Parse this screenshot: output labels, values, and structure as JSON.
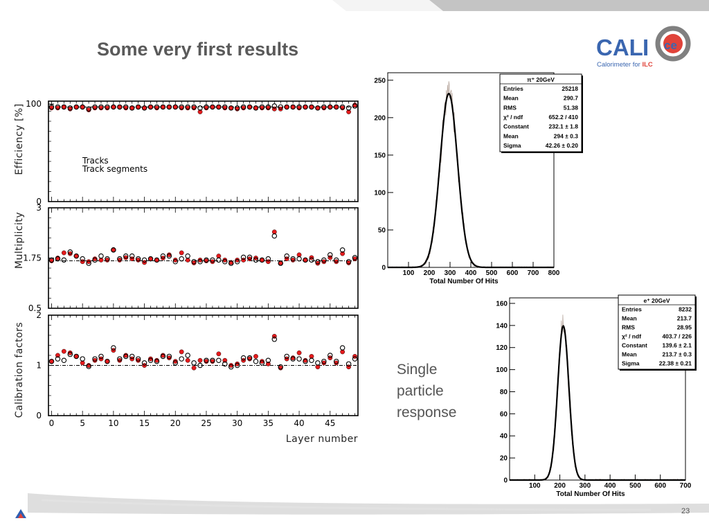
{
  "slide": {
    "title": "Some very first results",
    "page_number": "23",
    "single_particle_text": [
      "Single",
      "particle",
      "response"
    ]
  },
  "logo": {
    "text_cal": "CAL",
    "text_i": "I",
    "text_ce": "ce",
    "subtitle_pre": "Calorimeter for ",
    "subtitle_ilc": "ILC"
  },
  "colors": {
    "accent_red": "#e41a1c",
    "logo_blue": "#3a66b0",
    "logo_red": "#e0433a",
    "header_grey": "#c8c8c8"
  },
  "chart_data": [
    {
      "type": "scatter",
      "ylabel": "Efficiency [%]",
      "xlabel": "Layer number",
      "xlim": [
        -0.5,
        49.5
      ],
      "ylim": [
        0,
        103
      ],
      "yticks": [
        "0",
        "100"
      ],
      "reference_line": 97,
      "legend": [
        "Tracks",
        "Track segments"
      ],
      "series": [
        {
          "name": "Tracks",
          "marker": "open-circle",
          "x": [
            0,
            1,
            2,
            3,
            4,
            5,
            6,
            7,
            8,
            9,
            10,
            11,
            12,
            13,
            14,
            15,
            16,
            17,
            18,
            19,
            20,
            21,
            22,
            23,
            24,
            25,
            26,
            27,
            28,
            29,
            30,
            31,
            32,
            33,
            34,
            35,
            36,
            37,
            38,
            39,
            40,
            41,
            42,
            43,
            44,
            45,
            46,
            47,
            48,
            49
          ],
          "values": [
            97,
            97,
            97,
            96,
            97,
            97,
            95,
            97,
            97,
            97,
            97,
            97,
            97,
            96,
            97,
            96,
            97,
            97,
            97,
            97,
            97,
            97,
            97,
            97,
            96,
            97,
            97,
            97,
            97,
            96,
            96,
            97,
            97,
            96,
            97,
            97,
            98,
            97,
            97,
            97,
            97,
            97,
            97,
            96,
            97,
            97,
            97,
            97,
            96,
            98
          ]
        },
        {
          "name": "Track segments",
          "marker": "filled-circle",
          "x": [
            0,
            1,
            2,
            3,
            4,
            5,
            6,
            7,
            8,
            9,
            10,
            11,
            12,
            13,
            14,
            15,
            16,
            17,
            18,
            19,
            20,
            21,
            22,
            23,
            24,
            25,
            26,
            27,
            28,
            29,
            30,
            31,
            32,
            33,
            34,
            35,
            36,
            37,
            38,
            39,
            40,
            41,
            42,
            43,
            44,
            45,
            46,
            47,
            48,
            49
          ],
          "values": [
            96,
            96,
            97,
            95,
            97,
            97,
            94,
            96,
            96,
            96,
            97,
            97,
            96,
            96,
            97,
            96,
            97,
            96,
            97,
            97,
            97,
            96,
            96,
            96,
            92,
            96,
            97,
            97,
            96,
            96,
            95,
            96,
            97,
            96,
            96,
            96,
            95,
            95,
            97,
            97,
            96,
            97,
            97,
            96,
            96,
            97,
            97,
            96,
            92,
            99
          ]
        }
      ]
    },
    {
      "type": "scatter",
      "ylabel": "Multiplicity",
      "xlabel": "Layer number",
      "xlim": [
        -0.5,
        49.5
      ],
      "ylim": [
        0.5,
        3
      ],
      "yticks": [
        "0.5",
        "1.75",
        "3"
      ],
      "reference_line": 1.68,
      "series": [
        {
          "name": "Tracks",
          "marker": "open-circle",
          "x": [
            0,
            1,
            2,
            3,
            4,
            5,
            6,
            7,
            8,
            9,
            10,
            11,
            12,
            13,
            14,
            15,
            16,
            17,
            18,
            19,
            20,
            21,
            22,
            23,
            24,
            25,
            26,
            27,
            28,
            29,
            30,
            31,
            32,
            33,
            34,
            35,
            36,
            37,
            38,
            39,
            40,
            41,
            42,
            43,
            44,
            45,
            46,
            47,
            48,
            49
          ],
          "values": [
            1.7,
            1.73,
            1.7,
            1.9,
            1.8,
            1.73,
            1.62,
            1.7,
            1.8,
            1.73,
            1.95,
            1.73,
            1.8,
            1.8,
            1.73,
            1.7,
            1.73,
            1.7,
            1.8,
            1.8,
            1.66,
            1.73,
            1.8,
            1.66,
            1.66,
            1.7,
            1.7,
            1.7,
            1.66,
            1.62,
            1.66,
            1.77,
            1.77,
            1.7,
            1.7,
            1.73,
            2.3,
            1.62,
            1.8,
            1.73,
            1.73,
            1.7,
            1.7,
            1.66,
            1.7,
            1.83,
            1.7,
            1.95,
            1.66,
            1.76
          ]
        },
        {
          "name": "Track segments",
          "marker": "filled-circle",
          "x": [
            0,
            1,
            2,
            3,
            4,
            5,
            6,
            7,
            8,
            9,
            10,
            11,
            12,
            13,
            14,
            15,
            16,
            17,
            18,
            19,
            20,
            21,
            22,
            23,
            24,
            25,
            26,
            27,
            28,
            29,
            30,
            31,
            32,
            33,
            34,
            35,
            36,
            37,
            38,
            39,
            40,
            41,
            42,
            43,
            44,
            45,
            46,
            47,
            48,
            49
          ],
          "values": [
            1.68,
            1.75,
            1.88,
            1.86,
            1.8,
            1.66,
            1.66,
            1.73,
            1.7,
            1.7,
            1.96,
            1.7,
            1.76,
            1.73,
            1.7,
            1.64,
            1.73,
            1.7,
            1.75,
            1.83,
            1.7,
            1.88,
            1.7,
            1.63,
            1.7,
            1.68,
            1.66,
            1.8,
            1.7,
            1.64,
            1.7,
            1.7,
            1.73,
            1.75,
            1.7,
            1.66,
            2.4,
            1.63,
            1.73,
            1.7,
            1.83,
            1.7,
            1.76,
            1.62,
            1.66,
            1.76,
            1.66,
            1.86,
            1.63,
            1.73
          ]
        }
      ]
    },
    {
      "type": "scatter",
      "ylabel": "Calibration factors",
      "xlabel": "Layer number",
      "xlim": [
        -0.5,
        49.5
      ],
      "ylim": [
        0,
        2
      ],
      "yticks": [
        "0",
        "1",
        "2"
      ],
      "xticks": [
        "0",
        "5",
        "10",
        "15",
        "20",
        "25",
        "30",
        "35",
        "40",
        "45"
      ],
      "reference_line": 1.0,
      "series": [
        {
          "name": "Tracks",
          "marker": "open-circle",
          "x": [
            0,
            1,
            2,
            3,
            4,
            5,
            6,
            7,
            8,
            9,
            10,
            11,
            12,
            13,
            14,
            15,
            16,
            17,
            18,
            19,
            20,
            21,
            22,
            23,
            24,
            25,
            26,
            27,
            28,
            29,
            30,
            31,
            32,
            33,
            34,
            35,
            36,
            37,
            38,
            39,
            40,
            41,
            42,
            43,
            44,
            45,
            46,
            47,
            48,
            49
          ],
          "values": [
            1.08,
            1.13,
            1.1,
            1.22,
            1.18,
            1.13,
            0.98,
            1.13,
            1.18,
            1.08,
            1.35,
            1.13,
            1.18,
            1.18,
            1.13,
            1.05,
            1.1,
            1.08,
            1.18,
            1.18,
            1.05,
            1.13,
            1.2,
            1.05,
            1.0,
            1.1,
            1.1,
            1.1,
            1.03,
            0.97,
            1.0,
            1.15,
            1.15,
            1.08,
            1.05,
            1.1,
            1.52,
            0.97,
            1.18,
            1.13,
            1.13,
            1.08,
            1.1,
            1.05,
            1.08,
            1.2,
            1.08,
            1.35,
            1.03,
            1.13
          ]
        },
        {
          "name": "Track segments",
          "marker": "filled-circle",
          "x": [
            0,
            1,
            2,
            3,
            4,
            5,
            6,
            7,
            8,
            9,
            10,
            11,
            12,
            13,
            14,
            15,
            16,
            17,
            18,
            19,
            20,
            21,
            22,
            23,
            24,
            25,
            26,
            27,
            28,
            29,
            30,
            31,
            32,
            33,
            34,
            35,
            36,
            37,
            38,
            39,
            40,
            41,
            42,
            43,
            44,
            45,
            46,
            47,
            48,
            49
          ],
          "values": [
            1.08,
            1.2,
            1.28,
            1.25,
            1.18,
            1.05,
            1.0,
            1.1,
            1.13,
            1.08,
            1.3,
            1.1,
            1.2,
            1.13,
            1.1,
            1.0,
            1.13,
            1.1,
            1.2,
            1.15,
            1.08,
            1.27,
            1.1,
            0.95,
            1.1,
            1.08,
            1.08,
            1.23,
            1.1,
            1.0,
            1.03,
            1.1,
            1.13,
            1.18,
            1.08,
            1.03,
            1.58,
            0.95,
            1.13,
            1.15,
            1.25,
            1.1,
            1.18,
            0.97,
            1.05,
            1.15,
            1.05,
            1.27,
            0.97,
            1.18
          ]
        }
      ]
    },
    {
      "type": "line",
      "title": "π⁺ 20GeV",
      "xlabel": "Total Number Of Hits",
      "xlim": [
        0,
        800
      ],
      "ylim": [
        0,
        260
      ],
      "xticks": [
        "100",
        "200",
        "300",
        "400",
        "500",
        "600",
        "700",
        "800"
      ],
      "yticks": [
        "0",
        "50",
        "100",
        "150",
        "200",
        "250"
      ],
      "fit": {
        "shape": "gaussian",
        "constant": 232.1,
        "mean": 294,
        "sigma": 42.26
      },
      "stats": [
        [
          "Entries",
          "25218"
        ],
        [
          "Mean",
          "290.7"
        ],
        [
          "RMS",
          "51.38"
        ],
        [
          "χ² / ndf",
          "652.2 / 410"
        ],
        [
          "Constant",
          "232.1 ± 1.8"
        ],
        [
          "Mean",
          "294 ± 0.3"
        ],
        [
          "Sigma",
          "42.26 ± 0.20"
        ]
      ]
    },
    {
      "type": "line",
      "title": "e⁺ 20GeV",
      "xlabel": "Total Number Of Hits",
      "xlim": [
        0,
        700
      ],
      "ylim": [
        0,
        165
      ],
      "xticks": [
        "100",
        "200",
        "300",
        "400",
        "500",
        "600",
        "700"
      ],
      "yticks": [
        "0",
        "20",
        "40",
        "60",
        "80",
        "100",
        "120",
        "140",
        "160"
      ],
      "fit": {
        "shape": "gaussian",
        "constant": 139.6,
        "mean": 213.7,
        "sigma": 22.38
      },
      "stats": [
        [
          "Entries",
          "8232"
        ],
        [
          "Mean",
          "213.7"
        ],
        [
          "RMS",
          "28.95"
        ],
        [
          "χ² / ndf",
          "403.7 / 226"
        ],
        [
          "Constant",
          "139.6 ± 2.1"
        ],
        [
          "Mean",
          "213.7 ± 0.3"
        ],
        [
          "Sigma",
          "22.38 ± 0.21"
        ]
      ]
    }
  ]
}
